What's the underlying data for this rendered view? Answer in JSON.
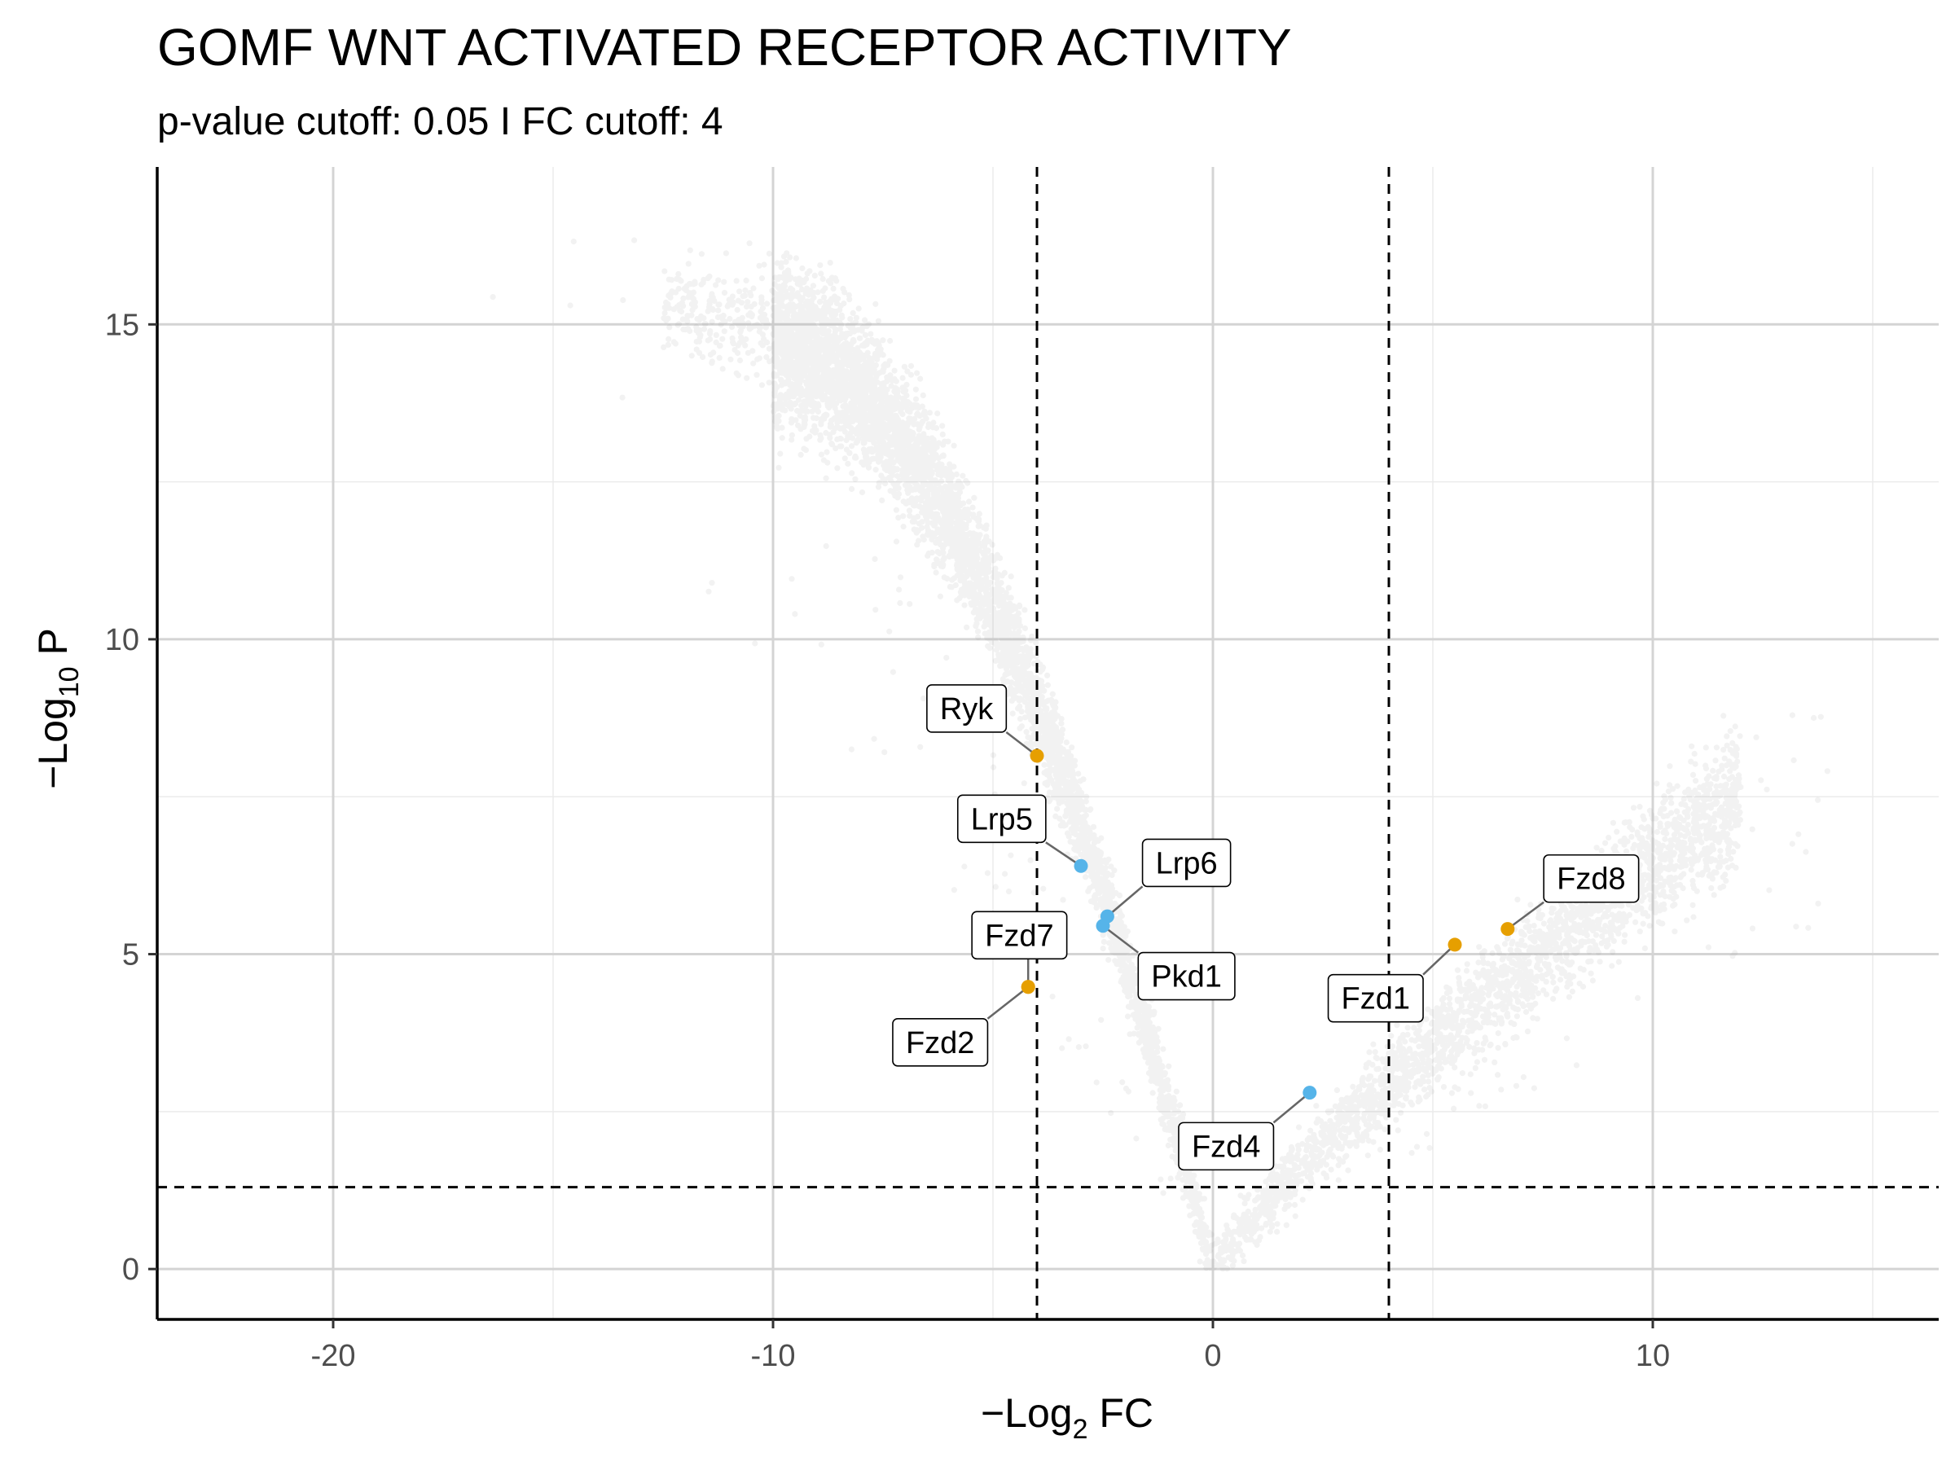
{
  "chart_data": {
    "type": "scatter",
    "title": "GOMF WNT ACTIVATED RECEPTOR ACTIVITY",
    "subtitle": "p-value cutoff: 0.05 I FC cutoff: 4",
    "xlabel": {
      "prefix": "−Log",
      "sub": "2",
      "suffix": " FC"
    },
    "ylabel": {
      "prefix": "−Log",
      "sub": "10",
      "suffix": " P"
    },
    "xlim": [
      -24,
      16.5
    ],
    "ylim": [
      -0.8,
      17.5
    ],
    "x_ticks": [
      -20,
      -10,
      0,
      10
    ],
    "x_tick_labels": [
      "-20",
      "-10",
      "0",
      "10"
    ],
    "y_ticks": [
      0,
      5,
      10,
      15
    ],
    "y_tick_labels": [
      "0",
      "5",
      "10",
      "15"
    ],
    "cutoffs": {
      "fc": [
        -4,
        4
      ],
      "p_log10": 1.3
    },
    "background_color": "#999999",
    "highlighted": [
      {
        "label": "Ryk",
        "x": -4.0,
        "y": 8.15,
        "color": "#E69F00",
        "lx": -5.6,
        "ly": 8.9
      },
      {
        "label": "Lrp5",
        "x": -3.0,
        "y": 6.4,
        "color": "#56B4E9",
        "lx": -4.8,
        "ly": 7.15
      },
      {
        "label": "Lrp6",
        "x": -2.4,
        "y": 5.6,
        "color": "#56B4E9",
        "lx": -0.6,
        "ly": 6.45
      },
      {
        "label": "Pkd1",
        "x": -2.5,
        "y": 5.45,
        "color": "#56B4E9",
        "lx": -0.6,
        "ly": 4.65
      },
      {
        "label": "Fzd7",
        "x": -4.2,
        "y": 4.48,
        "color": "#E69F00",
        "lx": -4.4,
        "ly": 5.3
      },
      {
        "label": "Fzd2",
        "x": -4.2,
        "y": 4.48,
        "color": "#E69F00",
        "lx": -6.2,
        "ly": 3.6
      },
      {
        "label": "Fzd4",
        "x": 2.2,
        "y": 2.8,
        "color": "#56B4E9",
        "lx": 0.3,
        "ly": 1.95
      },
      {
        "label": "Fzd1",
        "x": 5.5,
        "y": 5.15,
        "color": "#E69F00",
        "lx": 3.7,
        "ly": 4.3
      },
      {
        "label": "Fzd8",
        "x": 6.7,
        "y": 5.4,
        "color": "#E69F00",
        "lx": 8.6,
        "ly": 6.2
      }
    ]
  }
}
